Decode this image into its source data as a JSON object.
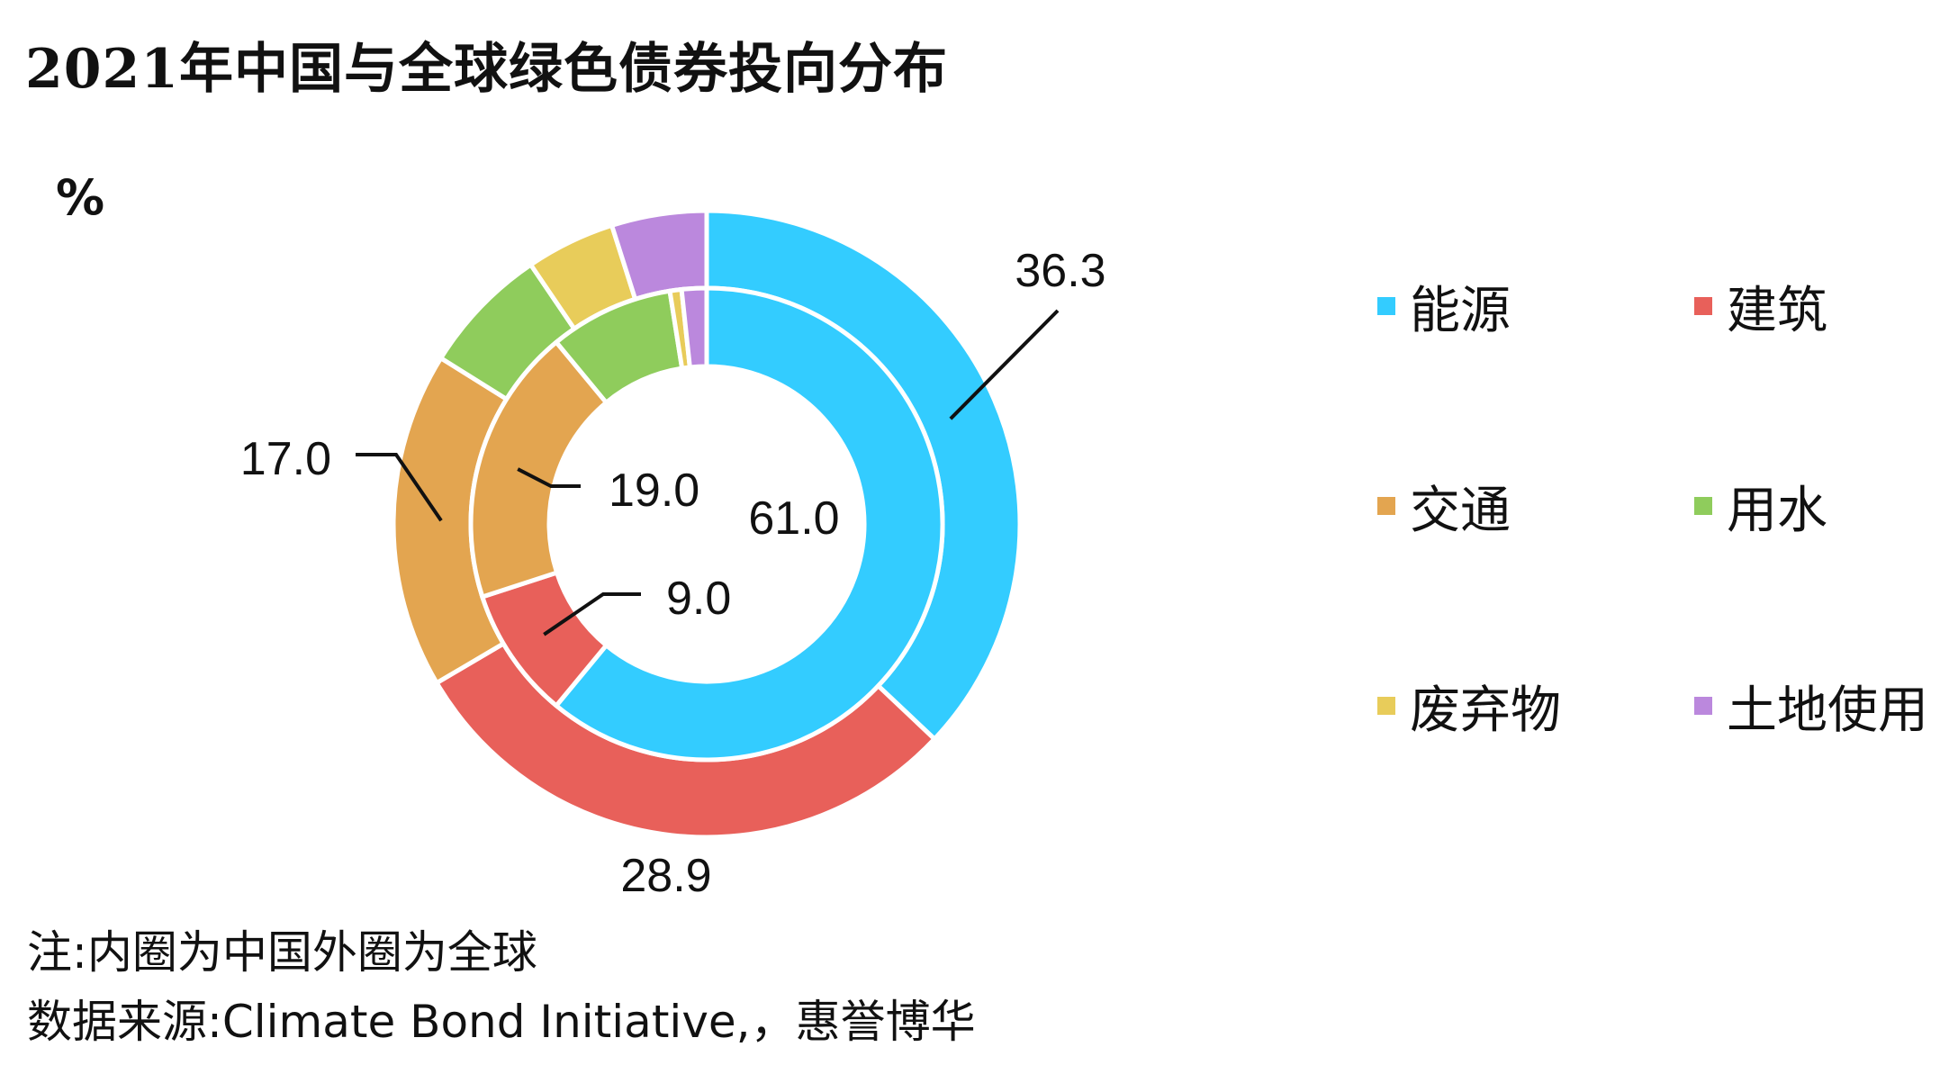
{
  "title": "2021年中国与全球绿色债券投向分布",
  "unit_label": "%",
  "note": "注:内圈为中国外圈为全球",
  "source": "数据来源:Climate Bond Initiative,，惠誉博华",
  "chart_data": {
    "type": "pie",
    "variant": "nested-donut",
    "categories": [
      "能源",
      "建筑",
      "交通",
      "用水",
      "废弃物",
      "土地使用"
    ],
    "colors": [
      "#33ccff",
      "#e8605a",
      "#e3a550",
      "#8fcc5c",
      "#e8cc5a",
      "#bb88dd"
    ],
    "series": [
      {
        "ring": "outer",
        "values": [
          36.3,
          28.9,
          17.0,
          6.5,
          4.5,
          4.8
        ]
      },
      {
        "ring": "inner",
        "values": [
          61.0,
          9.0,
          19.0,
          8.5,
          0.8,
          1.7
        ]
      }
    ],
    "data_labels": [
      {
        "ring": "outer",
        "category": "能源",
        "text": "36.3"
      },
      {
        "ring": "outer",
        "category": "建筑",
        "text": "28.9"
      },
      {
        "ring": "outer",
        "category": "交通",
        "text": "17.0"
      },
      {
        "ring": "inner",
        "category": "能源",
        "text": "61.0"
      },
      {
        "ring": "inner",
        "category": "建筑",
        "text": "9.0"
      },
      {
        "ring": "inner",
        "category": "交通",
        "text": "19.0"
      }
    ],
    "legend_position": "right"
  }
}
